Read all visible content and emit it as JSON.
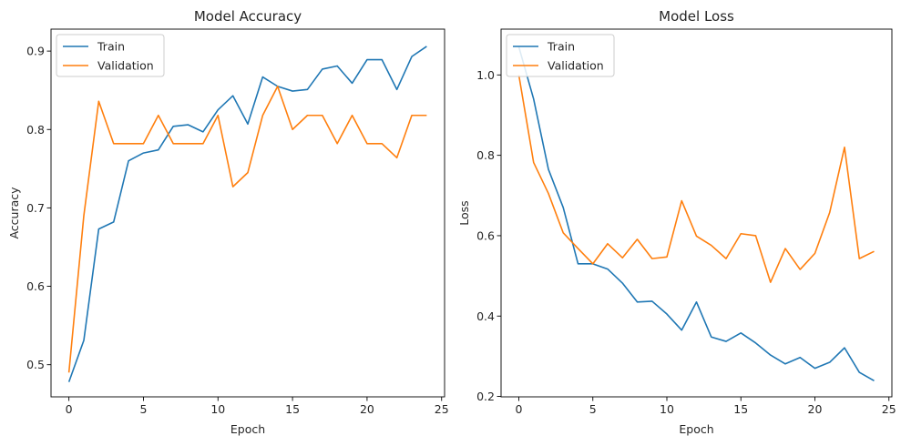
{
  "colors": {
    "train": "#1f77b4",
    "validation": "#ff7f0e"
  },
  "chart_data": [
    {
      "type": "line",
      "title": "Model Accuracy",
      "xlabel": "Epoch",
      "ylabel": "Accuracy",
      "xlim": [
        -1.2,
        25.2
      ],
      "ylim": [
        0.459,
        0.928
      ],
      "xticks": [
        0,
        5,
        10,
        15,
        20,
        25
      ],
      "yticks": [
        0.5,
        0.6,
        0.7,
        0.8,
        0.9
      ],
      "ytick_labels": [
        "0.5",
        "0.6",
        "0.7",
        "0.8",
        "0.9"
      ],
      "legend_loc": "upper left",
      "x": [
        0,
        1,
        2,
        3,
        4,
        5,
        6,
        7,
        8,
        9,
        10,
        11,
        12,
        13,
        14,
        15,
        16,
        17,
        18,
        19,
        20,
        21,
        22,
        23,
        24
      ],
      "series": [
        {
          "name": "Train",
          "values": [
            0.478,
            0.531,
            0.673,
            0.682,
            0.76,
            0.77,
            0.774,
            0.804,
            0.806,
            0.797,
            0.825,
            0.843,
            0.807,
            0.867,
            0.855,
            0.849,
            0.851,
            0.877,
            0.881,
            0.859,
            0.889,
            0.889,
            0.851,
            0.893,
            0.906
          ]
        },
        {
          "name": "Validation",
          "values": [
            0.49,
            0.69,
            0.836,
            0.782,
            0.782,
            0.782,
            0.818,
            0.782,
            0.782,
            0.782,
            0.818,
            0.727,
            0.745,
            0.818,
            0.855,
            0.8,
            0.818,
            0.818,
            0.782,
            0.818,
            0.782,
            0.782,
            0.764,
            0.818,
            0.818
          ]
        }
      ]
    },
    {
      "type": "line",
      "title": "Model Loss",
      "xlabel": "Epoch",
      "ylabel": "Loss",
      "xlim": [
        -1.2,
        25.2
      ],
      "ylim": [
        0.199,
        1.114
      ],
      "xticks": [
        0,
        5,
        10,
        15,
        20,
        25
      ],
      "yticks": [
        0.2,
        0.4,
        0.6,
        0.8,
        1.0
      ],
      "ytick_labels": [
        "0.2",
        "0.4",
        "0.6",
        "0.8",
        "1.0"
      ],
      "legend_loc": "upper left",
      "x": [
        0,
        1,
        2,
        3,
        4,
        5,
        6,
        7,
        8,
        9,
        10,
        11,
        12,
        13,
        14,
        15,
        16,
        17,
        18,
        19,
        20,
        21,
        22,
        23,
        24
      ],
      "series": [
        {
          "name": "Train",
          "values": [
            1.07,
            0.94,
            0.765,
            0.67,
            0.53,
            0.53,
            0.517,
            0.482,
            0.435,
            0.437,
            0.405,
            0.365,
            0.435,
            0.348,
            0.337,
            0.358,
            0.333,
            0.303,
            0.281,
            0.297,
            0.27,
            0.285,
            0.321,
            0.26,
            0.239
          ]
        },
        {
          "name": "Validation",
          "values": [
            1.0,
            0.782,
            0.705,
            0.607,
            0.568,
            0.53,
            0.58,
            0.545,
            0.591,
            0.543,
            0.547,
            0.687,
            0.599,
            0.576,
            0.543,
            0.605,
            0.6,
            0.484,
            0.568,
            0.516,
            0.556,
            0.658,
            0.82,
            0.543,
            0.561
          ]
        }
      ]
    }
  ]
}
